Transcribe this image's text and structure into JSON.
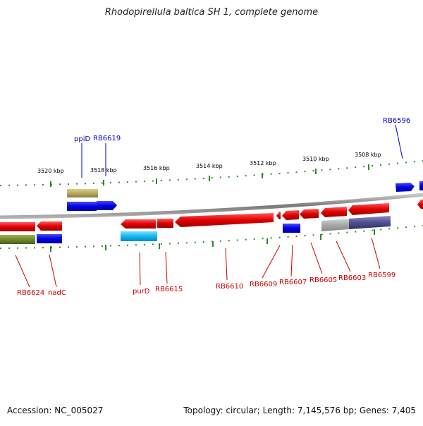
{
  "title": "Rhodopirellula baltica SH 1, complete genome",
  "footer": {
    "accession": "Accession: NC_005027",
    "summary": "Topology: circular; Length: 7,145,576 bp; Genes: 7,405"
  },
  "scale_labels": [
    "3520 kbp",
    "3518 kbp",
    "3516 kbp",
    "3514 kbp",
    "3512 kbp",
    "3510 kbp",
    "3508 kbp"
  ],
  "gene_labels_top": [
    "ppiD",
    "RB6619",
    "RB6596"
  ],
  "gene_labels_bottom": [
    "RB6624",
    "nadC",
    "purD",
    "RB6615",
    "RB6610",
    "RB6609",
    "RB6607",
    "RB6605",
    "RB6603",
    "RB6599"
  ],
  "colors": {
    "forward_label": "#0000cc",
    "reverse_label": "#cc0000",
    "tick": "#2a8a2a",
    "backbone": "#8a8a8a"
  }
}
